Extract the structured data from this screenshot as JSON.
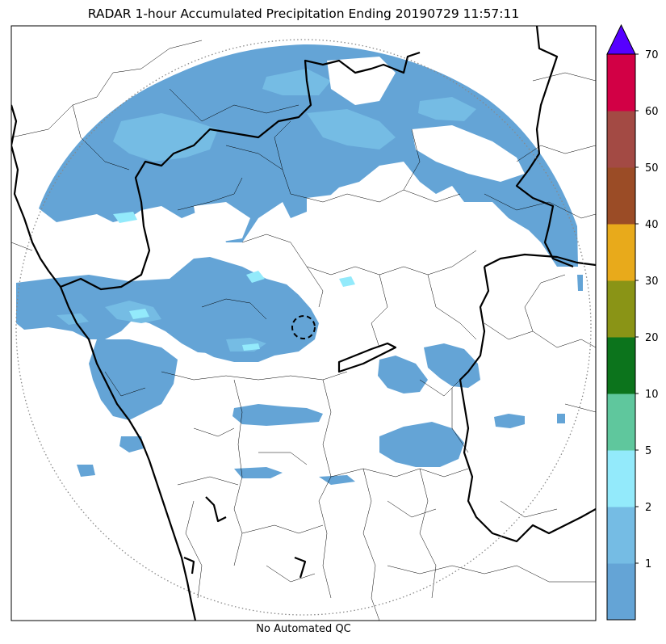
{
  "title": "RADAR 1-hour Accumulated Precipitation Ending 20190729 11:57:11",
  "footer": "No Automated QC",
  "colorbar": {
    "bins": [
      {
        "color": "#64a4d6"
      },
      {
        "label": "1",
        "color": "#75bce4"
      },
      {
        "label": "2",
        "color": "#93eafb"
      },
      {
        "label": "5",
        "color": "#5fc79d"
      },
      {
        "label": "10",
        "color": "#0c741c"
      },
      {
        "label": "20",
        "color": "#8a9416"
      },
      {
        "label": "30",
        "color": "#e8aa1b"
      },
      {
        "label": "40",
        "color": "#9b4c26"
      },
      {
        "label": "50",
        "color": "#a34a44"
      },
      {
        "label": "60",
        "color": "#d20045"
      },
      {
        "label": "70",
        "color": "#5600ff"
      }
    ],
    "extend_color": "#5600ff"
  },
  "colors": {
    "light_rain": "#64a4d6",
    "moderate_rain": "#75bce4",
    "heavier_rain": "#93eafb",
    "boundary": "#000000",
    "range_ring": "#888888"
  }
}
